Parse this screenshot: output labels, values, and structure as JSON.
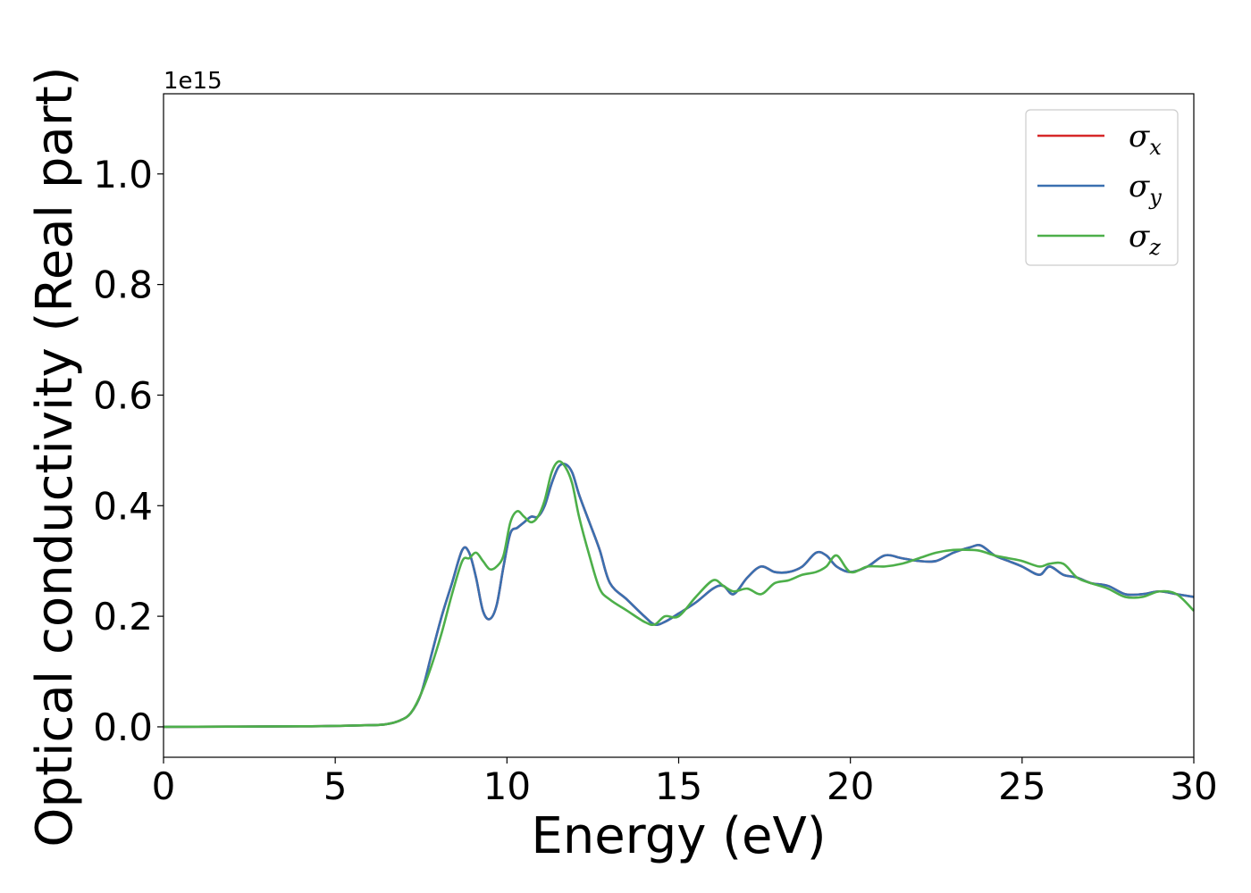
{
  "chart_data": {
    "type": "line",
    "title": "",
    "xlabel": "Energy (eV)",
    "ylabel": "Optical conductivity (Real part)",
    "y_offset_label": "1e15",
    "xlim": [
      0,
      30
    ],
    "ylim": [
      -0.055,
      1.145
    ],
    "xticks": [
      0,
      5,
      10,
      15,
      20,
      25,
      30
    ],
    "yticks": [
      0.0,
      0.2,
      0.4,
      0.6,
      0.8,
      1.0
    ],
    "ytick_labels": [
      "0.0",
      "0.2",
      "0.4",
      "0.6",
      "0.8",
      "1.0"
    ],
    "grid": false,
    "legend_position": "top-right",
    "series": [
      {
        "name": "σ",
        "subscript": "x",
        "color": "#d62728",
        "x": [
          0,
          4,
          6,
          6.5,
          6.9,
          7.2,
          7.5,
          7.8,
          8.1,
          8.4,
          8.7,
          8.9,
          9.1,
          9.3,
          9.5,
          9.7,
          9.9,
          10.1,
          10.3,
          10.5,
          10.7,
          10.9,
          11.1,
          11.3,
          11.5,
          11.7,
          11.9,
          12.1,
          12.4,
          12.7,
          13.0,
          13.5,
          14.0,
          14.3,
          14.6,
          15.0,
          15.5,
          16.0,
          16.3,
          16.6,
          17.0,
          17.4,
          17.8,
          18.2,
          18.6,
          19.0,
          19.3,
          19.6,
          20.0,
          20.5,
          21.0,
          21.5,
          22.0,
          22.5,
          23.0,
          23.5,
          23.8,
          24.2,
          24.6,
          25.0,
          25.5,
          25.8,
          26.2,
          26.6,
          27.0,
          27.5,
          28.0,
          28.5,
          29.0,
          29.5,
          30.0
        ],
        "values": [
          0.0,
          0.001,
          0.003,
          0.005,
          0.012,
          0.025,
          0.06,
          0.13,
          0.2,
          0.26,
          0.32,
          0.315,
          0.27,
          0.21,
          0.195,
          0.22,
          0.29,
          0.35,
          0.36,
          0.37,
          0.38,
          0.38,
          0.4,
          0.44,
          0.47,
          0.475,
          0.46,
          0.42,
          0.37,
          0.32,
          0.26,
          0.23,
          0.2,
          0.185,
          0.19,
          0.205,
          0.225,
          0.25,
          0.255,
          0.24,
          0.27,
          0.29,
          0.28,
          0.28,
          0.29,
          0.315,
          0.31,
          0.29,
          0.28,
          0.29,
          0.31,
          0.305,
          0.3,
          0.3,
          0.315,
          0.325,
          0.328,
          0.31,
          0.3,
          0.29,
          0.275,
          0.29,
          0.275,
          0.27,
          0.26,
          0.255,
          0.24,
          0.24,
          0.245,
          0.24,
          0.235
        ]
      },
      {
        "name": "σ",
        "subscript": "y",
        "color": "#3a70b0",
        "x": [
          0,
          4,
          6,
          6.5,
          6.9,
          7.2,
          7.5,
          7.8,
          8.1,
          8.4,
          8.7,
          8.9,
          9.1,
          9.3,
          9.5,
          9.7,
          9.9,
          10.1,
          10.3,
          10.5,
          10.7,
          10.9,
          11.1,
          11.3,
          11.5,
          11.7,
          11.9,
          12.1,
          12.4,
          12.7,
          13.0,
          13.5,
          14.0,
          14.3,
          14.6,
          15.0,
          15.5,
          16.0,
          16.3,
          16.6,
          17.0,
          17.4,
          17.8,
          18.2,
          18.6,
          19.0,
          19.3,
          19.6,
          20.0,
          20.5,
          21.0,
          21.5,
          22.0,
          22.5,
          23.0,
          23.5,
          23.8,
          24.2,
          24.6,
          25.0,
          25.5,
          25.8,
          26.2,
          26.6,
          27.0,
          27.5,
          28.0,
          28.5,
          29.0,
          29.5,
          30.0
        ],
        "values": [
          0.0,
          0.001,
          0.003,
          0.005,
          0.012,
          0.025,
          0.06,
          0.13,
          0.2,
          0.26,
          0.32,
          0.315,
          0.27,
          0.21,
          0.195,
          0.22,
          0.29,
          0.35,
          0.36,
          0.37,
          0.38,
          0.38,
          0.4,
          0.44,
          0.47,
          0.475,
          0.46,
          0.42,
          0.37,
          0.32,
          0.26,
          0.23,
          0.2,
          0.185,
          0.19,
          0.205,
          0.225,
          0.25,
          0.255,
          0.24,
          0.27,
          0.29,
          0.28,
          0.28,
          0.29,
          0.315,
          0.31,
          0.29,
          0.28,
          0.29,
          0.31,
          0.305,
          0.3,
          0.3,
          0.315,
          0.325,
          0.328,
          0.31,
          0.3,
          0.29,
          0.275,
          0.29,
          0.275,
          0.27,
          0.26,
          0.255,
          0.24,
          0.24,
          0.245,
          0.24,
          0.235
        ]
      },
      {
        "name": "σ",
        "subscript": "z",
        "color": "#4daf4a",
        "x": [
          0,
          4,
          6,
          6.5,
          6.9,
          7.2,
          7.5,
          7.8,
          8.1,
          8.4,
          8.7,
          8.9,
          9.1,
          9.3,
          9.5,
          9.7,
          9.9,
          10.1,
          10.3,
          10.5,
          10.7,
          10.9,
          11.1,
          11.3,
          11.5,
          11.7,
          11.9,
          12.1,
          12.4,
          12.7,
          13.0,
          13.5,
          14.0,
          14.3,
          14.6,
          15.0,
          15.5,
          16.0,
          16.3,
          16.6,
          17.0,
          17.4,
          17.8,
          18.2,
          18.6,
          19.0,
          19.3,
          19.6,
          20.0,
          20.5,
          21.0,
          21.5,
          22.0,
          22.5,
          23.0,
          23.5,
          23.8,
          24.2,
          24.6,
          25.0,
          25.5,
          25.8,
          26.2,
          26.6,
          27.0,
          27.5,
          28.0,
          28.5,
          29.0,
          29.5,
          30.0
        ],
        "values": [
          0.0,
          0.001,
          0.003,
          0.005,
          0.012,
          0.025,
          0.06,
          0.11,
          0.17,
          0.24,
          0.3,
          0.305,
          0.315,
          0.3,
          0.285,
          0.29,
          0.31,
          0.37,
          0.39,
          0.38,
          0.37,
          0.38,
          0.41,
          0.46,
          0.48,
          0.47,
          0.44,
          0.38,
          0.31,
          0.25,
          0.23,
          0.21,
          0.19,
          0.185,
          0.2,
          0.2,
          0.235,
          0.265,
          0.255,
          0.245,
          0.25,
          0.24,
          0.26,
          0.265,
          0.275,
          0.28,
          0.29,
          0.31,
          0.28,
          0.29,
          0.29,
          0.295,
          0.305,
          0.315,
          0.32,
          0.32,
          0.318,
          0.31,
          0.305,
          0.3,
          0.29,
          0.295,
          0.295,
          0.27,
          0.26,
          0.25,
          0.235,
          0.235,
          0.245,
          0.24,
          0.21
        ]
      }
    ]
  }
}
